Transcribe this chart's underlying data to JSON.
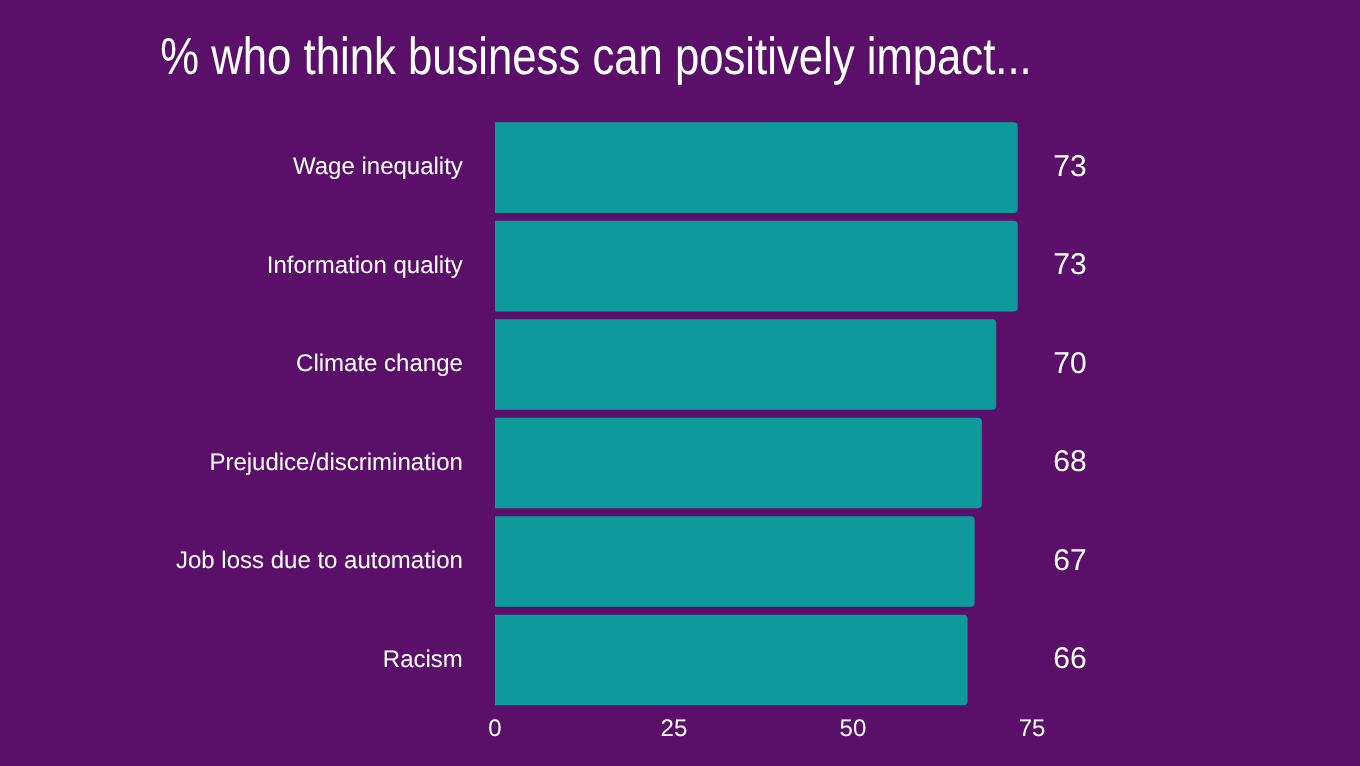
{
  "chart_data": {
    "type": "bar",
    "orientation": "horizontal",
    "title": "% who think business can positively impact...",
    "categories": [
      "Wage inequality",
      "Information quality",
      "Climate change",
      "Prejudice/discrimination",
      "Job loss due to automation",
      "Racism"
    ],
    "values": [
      73,
      73,
      70,
      68,
      67,
      66
    ],
    "color": "#0e9a9b",
    "xlim": [
      0,
      75
    ],
    "xticks": [
      0,
      25,
      50,
      75
    ],
    "grid": false,
    "data_labels": true
  }
}
